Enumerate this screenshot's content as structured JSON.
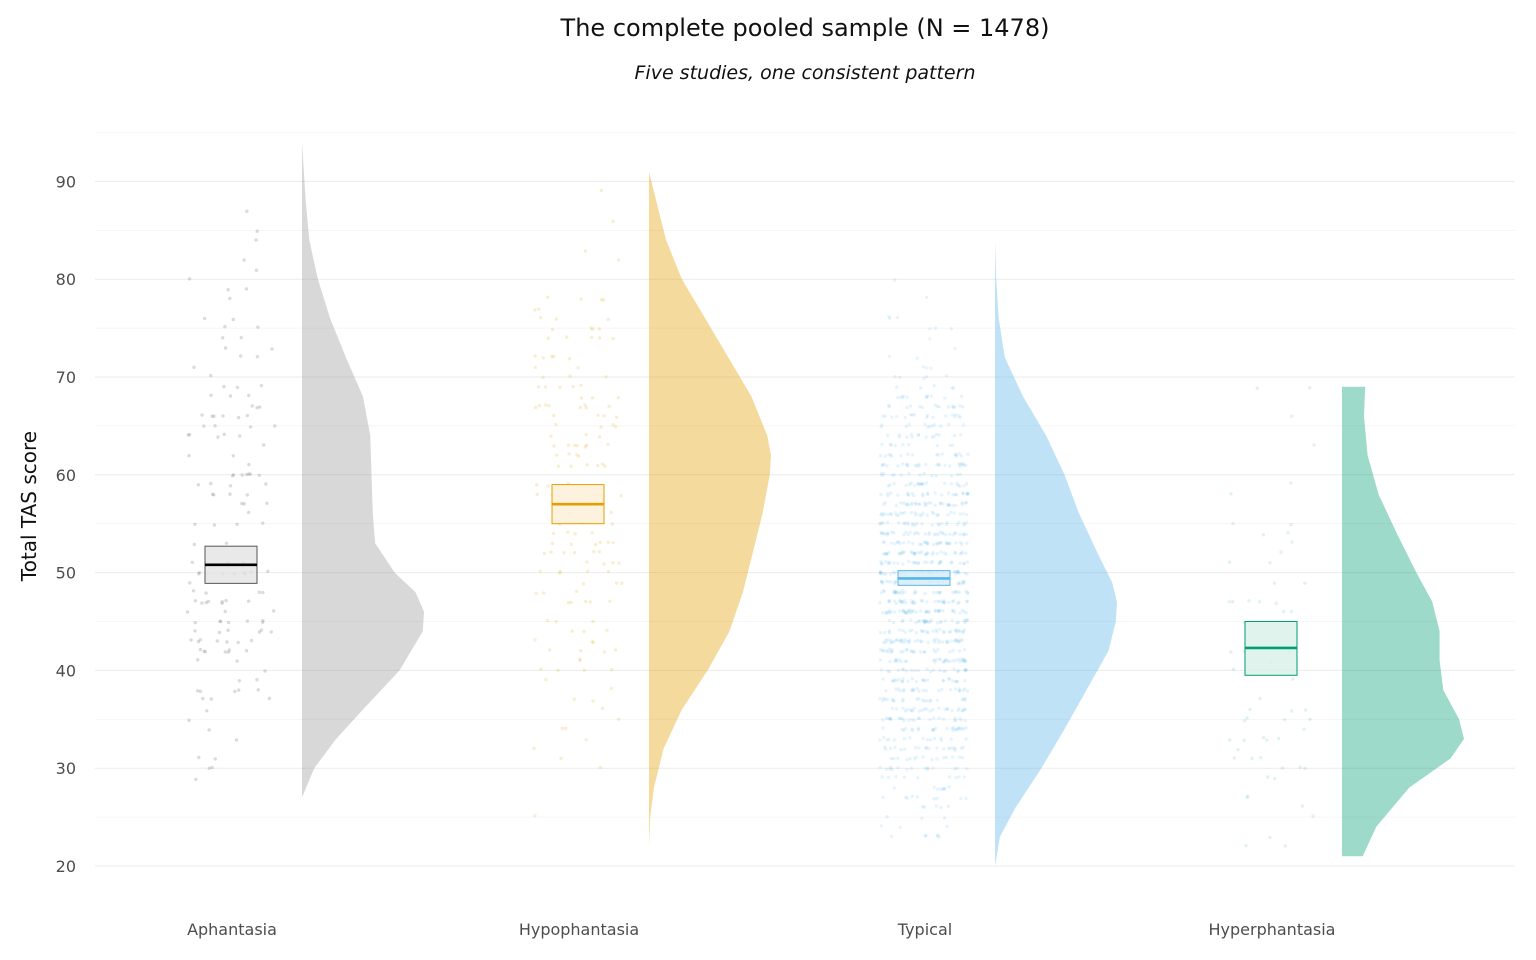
{
  "chart_data": {
    "type": "raincloud",
    "title": "The complete pooled sample (N = 1478)",
    "subtitle": "Five studies, one consistent pattern",
    "xlabel": "",
    "ylabel": "Total TAS score",
    "ylim": [
      15,
      100
    ],
    "yticks": [
      20,
      30,
      40,
      50,
      60,
      70,
      80,
      90
    ],
    "grid": true,
    "legend": "none",
    "categories": [
      "Aphantasia",
      "Hypophantasia",
      "Typical",
      "Hyperphantasia"
    ],
    "series": [
      {
        "category": "Aphantasia",
        "color": "#999999",
        "box_fill": "#e3e3e3",
        "box_stroke": "#555555",
        "median_color": "#000000",
        "n_points": 150,
        "point_opacity": 0.35,
        "range": [
          27,
          94
        ],
        "median": 50.8,
        "box": [
          48.9,
          52.7
        ],
        "density": [
          [
            27,
            0.0
          ],
          [
            30,
            0.1
          ],
          [
            33,
            0.28
          ],
          [
            36,
            0.5
          ],
          [
            40,
            0.8
          ],
          [
            44,
            0.99
          ],
          [
            46,
            1.0
          ],
          [
            48,
            0.93
          ],
          [
            50,
            0.76
          ],
          [
            53,
            0.6
          ],
          [
            56,
            0.58
          ],
          [
            60,
            0.57
          ],
          [
            64,
            0.56
          ],
          [
            68,
            0.5
          ],
          [
            72,
            0.36
          ],
          [
            76,
            0.23
          ],
          [
            80,
            0.13
          ],
          [
            84,
            0.06
          ],
          [
            88,
            0.03
          ],
          [
            92,
            0.01
          ],
          [
            94,
            0.0
          ]
        ]
      },
      {
        "category": "Hypophantasia",
        "color": "#E69F00",
        "box_fill": "#fcefd6",
        "box_stroke": "#E69F00",
        "median_color": "#E69F00",
        "n_points": 160,
        "point_opacity": 0.18,
        "range": [
          22,
          91
        ],
        "median": 57,
        "box": [
          55,
          59
        ],
        "density": [
          [
            22,
            0.0
          ],
          [
            25,
            0.01
          ],
          [
            28,
            0.04
          ],
          [
            32,
            0.12
          ],
          [
            36,
            0.27
          ],
          [
            40,
            0.48
          ],
          [
            44,
            0.66
          ],
          [
            48,
            0.77
          ],
          [
            52,
            0.85
          ],
          [
            56,
            0.93
          ],
          [
            60,
            0.99
          ],
          [
            62,
            1.0
          ],
          [
            64,
            0.97
          ],
          [
            68,
            0.84
          ],
          [
            72,
            0.65
          ],
          [
            76,
            0.46
          ],
          [
            80,
            0.27
          ],
          [
            84,
            0.14
          ],
          [
            88,
            0.06
          ],
          [
            91,
            0.0
          ]
        ]
      },
      {
        "category": "Typical",
        "color": "#56B4E9",
        "box_fill": "#d4ecf9",
        "box_stroke": "#56B4E9",
        "median_color": "#56B4E9",
        "n_points": 1050,
        "point_opacity": 0.15,
        "range": [
          20,
          87
        ],
        "median": 49.4,
        "box": [
          48.7,
          50.2
        ],
        "density": [
          [
            20,
            0.0
          ],
          [
            23,
            0.04
          ],
          [
            26,
            0.17
          ],
          [
            30,
            0.38
          ],
          [
            34,
            0.57
          ],
          [
            38,
            0.75
          ],
          [
            42,
            0.93
          ],
          [
            45,
            0.99
          ],
          [
            47,
            1.0
          ],
          [
            49,
            0.96
          ],
          [
            52,
            0.84
          ],
          [
            56,
            0.69
          ],
          [
            60,
            0.57
          ],
          [
            64,
            0.42
          ],
          [
            68,
            0.23
          ],
          [
            72,
            0.08
          ],
          [
            76,
            0.03
          ],
          [
            80,
            0.01
          ],
          [
            84,
            0.0
          ],
          [
            87,
            0.0
          ]
        ]
      },
      {
        "category": "Hyperphantasia",
        "color": "#009E73",
        "box_fill": "#d9f0e8",
        "box_stroke": "#009E73",
        "median_color": "#009E73",
        "n_points": 60,
        "point_opacity": 0.12,
        "range": [
          21,
          69
        ],
        "median": 42.3,
        "box": [
          39.5,
          45
        ],
        "density": [
          [
            21,
            0.17
          ],
          [
            24,
            0.28
          ],
          [
            28,
            0.55
          ],
          [
            31,
            0.89
          ],
          [
            33,
            1.0
          ],
          [
            35,
            0.96
          ],
          [
            38,
            0.83
          ],
          [
            41,
            0.8
          ],
          [
            44,
            0.8
          ],
          [
            47,
            0.74
          ],
          [
            50,
            0.61
          ],
          [
            54,
            0.45
          ],
          [
            58,
            0.3
          ],
          [
            62,
            0.21
          ],
          [
            66,
            0.18
          ],
          [
            69,
            0.19
          ]
        ]
      }
    ]
  }
}
